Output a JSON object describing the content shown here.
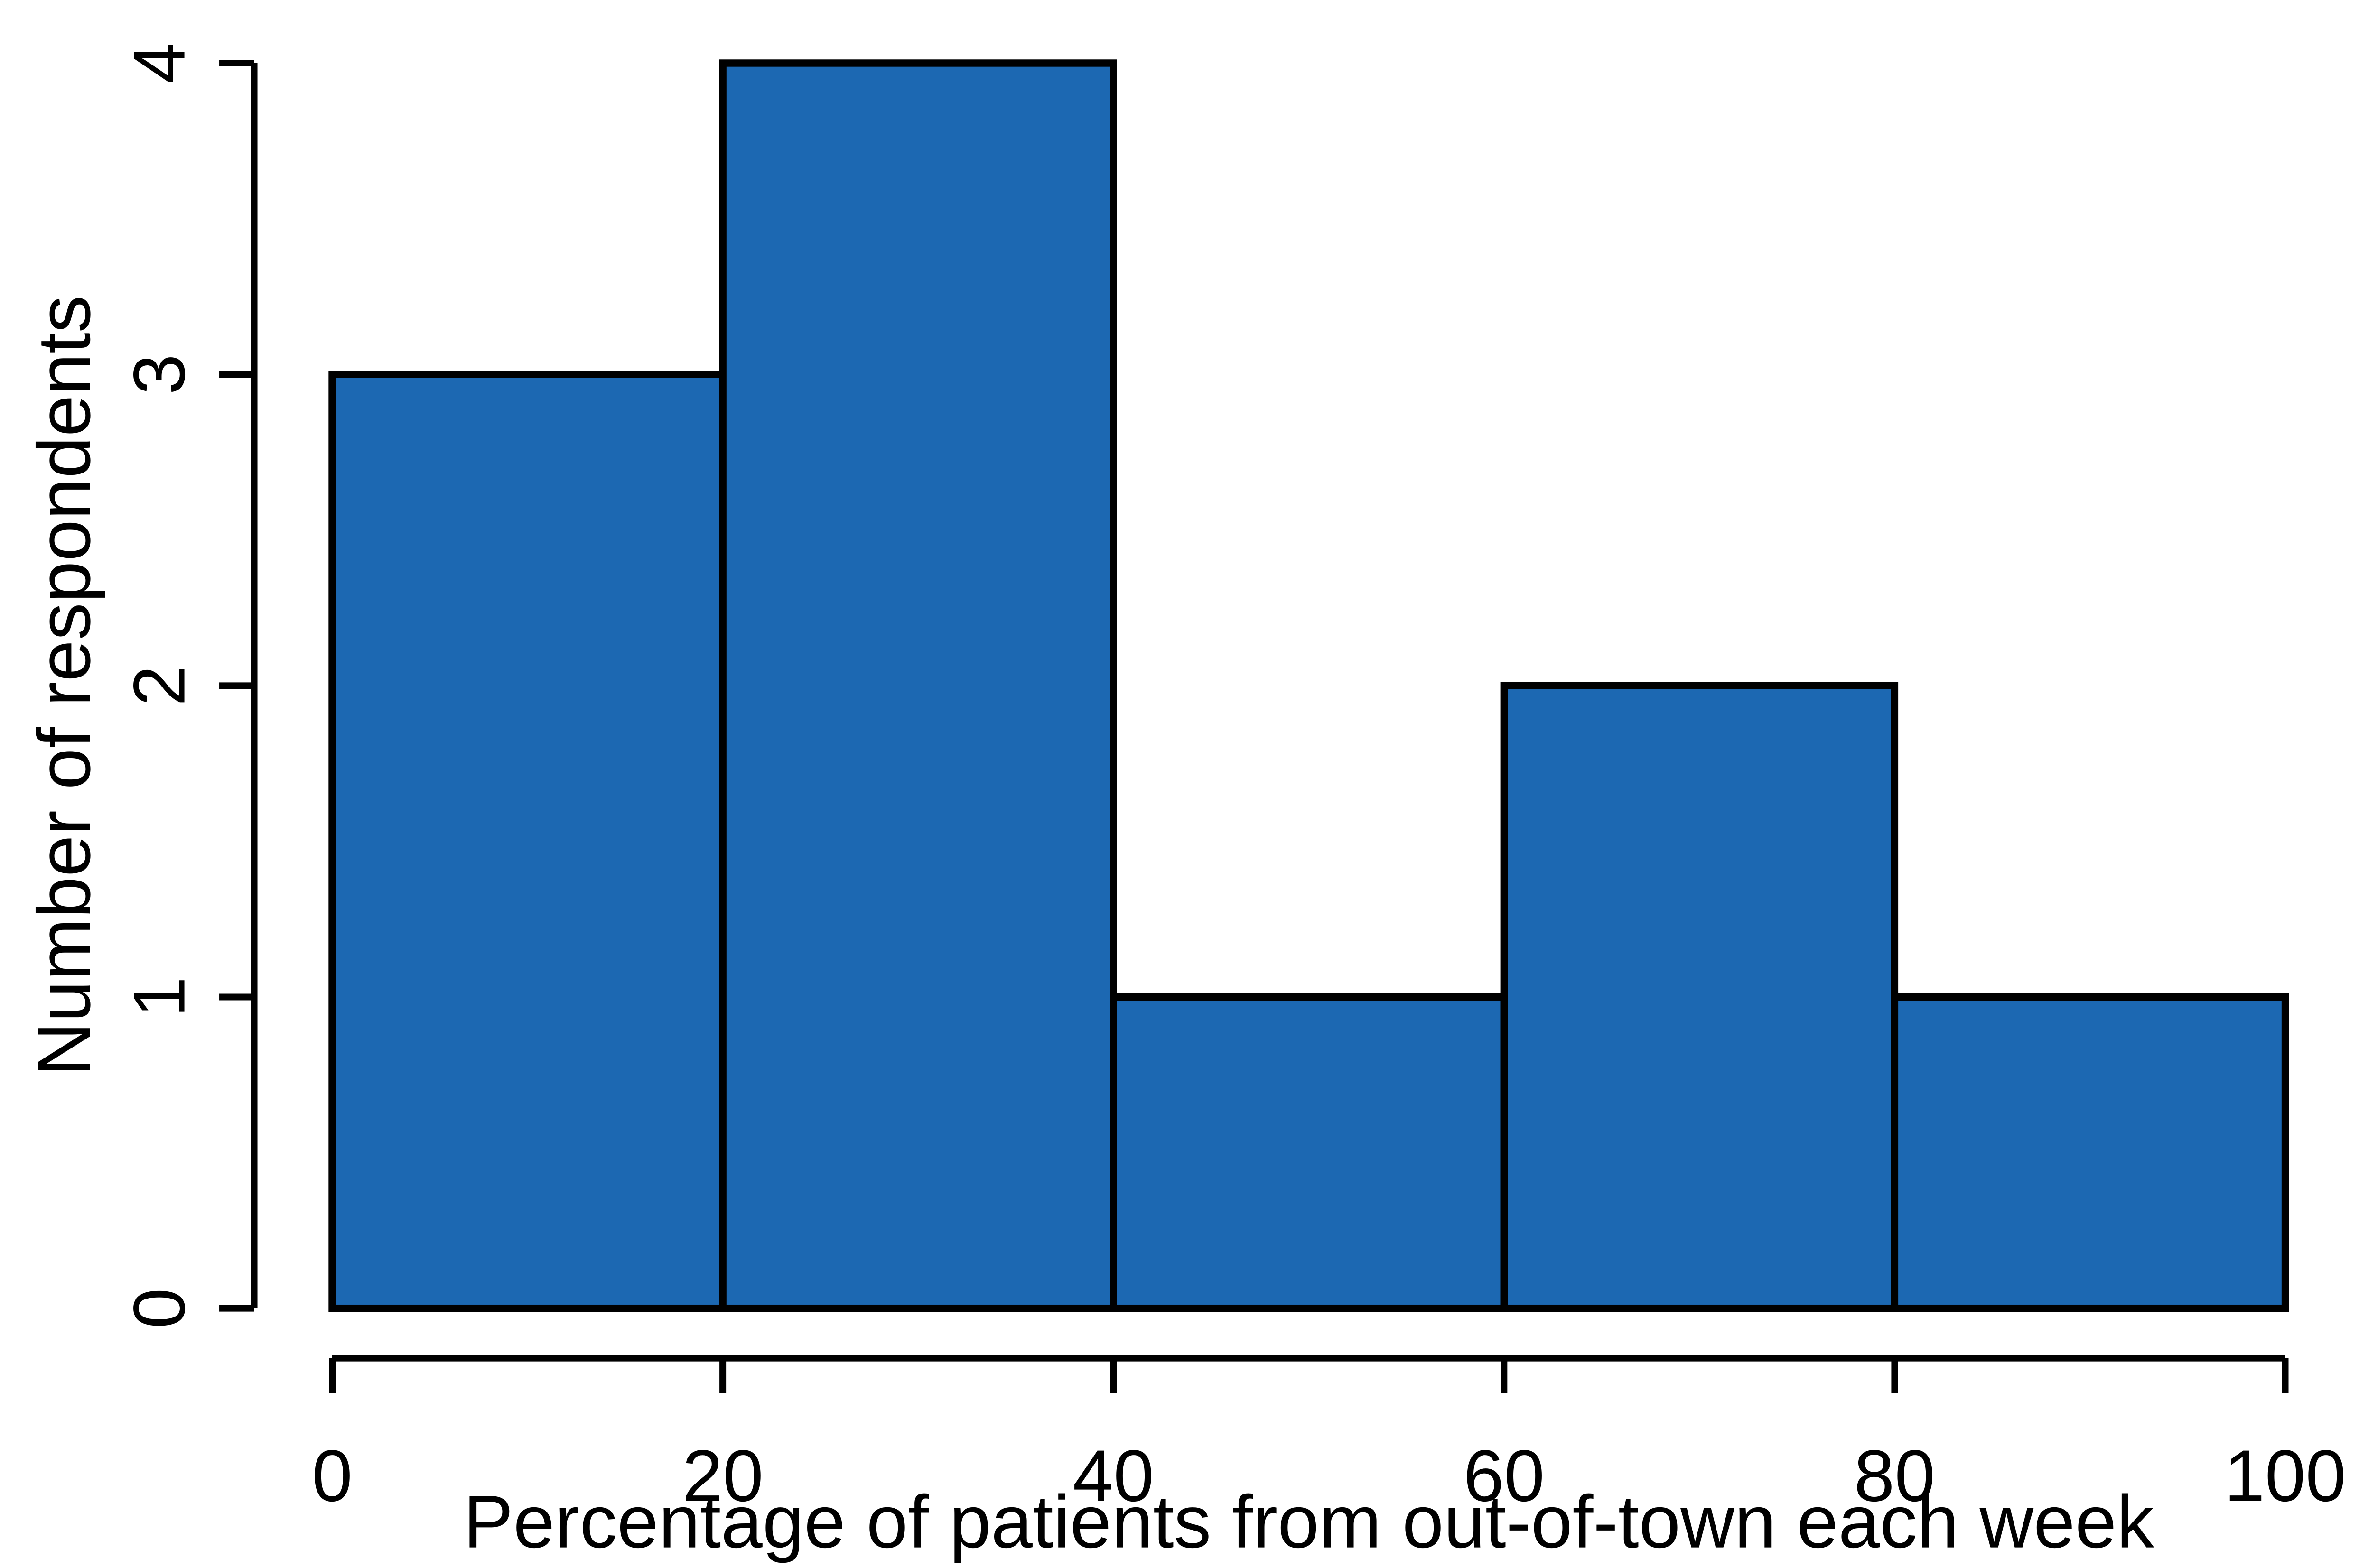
{
  "figure": {
    "background": "#ffffff"
  },
  "chart_data": {
    "type": "bar",
    "subtype": "histogram",
    "title": "",
    "xlabel": "Percentage of patients from out-of-town each week",
    "ylabel": "Number of respondents",
    "bin_edges": [
      0,
      20,
      40,
      60,
      80,
      100
    ],
    "categories": [
      "0-20",
      "20-40",
      "40-60",
      "60-80",
      "80-100"
    ],
    "values": [
      3,
      4,
      1,
      2,
      1
    ],
    "x_tick_labels": [
      "0",
      "20",
      "40",
      "60",
      "80",
      "100"
    ],
    "y_tick_labels": [
      "0",
      "1",
      "2",
      "3",
      "4"
    ],
    "x_tick_values": [
      0,
      20,
      40,
      60,
      80,
      100
    ],
    "y_tick_values": [
      0,
      1,
      2,
      3,
      4
    ],
    "xlim": [
      0,
      100
    ],
    "ylim": [
      0,
      4
    ],
    "grid": false,
    "legend": null,
    "bar_fill": "#1c68b2",
    "bar_border": "#000000",
    "axis_color": "#000000",
    "text_color": "#000000"
  }
}
